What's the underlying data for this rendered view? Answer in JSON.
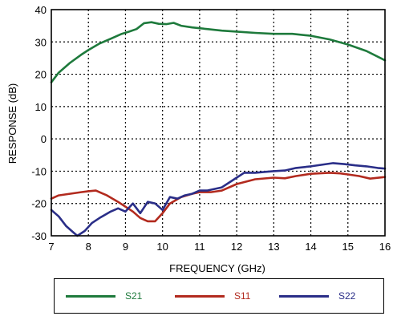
{
  "chart_data": {
    "type": "line",
    "xlabel": "FREQUENCY (GHz)",
    "ylabel": "RESPONSE (dB)",
    "xlim": [
      7,
      16
    ],
    "ylim": [
      -30,
      40
    ],
    "xticks": [
      7,
      8,
      9,
      10,
      11,
      12,
      13,
      14,
      15,
      16
    ],
    "yticks": [
      -30,
      -20,
      -10,
      0,
      10,
      20,
      30,
      40
    ],
    "grid": "dotted",
    "legend_position": "bottom",
    "series": [
      {
        "name": "S21",
        "color": "#1e7a3c",
        "x": [
          7.0,
          7.2,
          7.5,
          7.8,
          8.0,
          8.3,
          8.6,
          8.9,
          9.1,
          9.3,
          9.5,
          9.7,
          9.9,
          10.1,
          10.3,
          10.5,
          10.8,
          11.2,
          11.6,
          12.0,
          12.5,
          13.0,
          13.5,
          14.0,
          14.5,
          15.0,
          15.5,
          16.0
        ],
        "y": [
          17.5,
          20.5,
          23.5,
          26.0,
          27.5,
          29.5,
          31.0,
          32.5,
          33.2,
          34.0,
          35.8,
          36.1,
          35.6,
          35.5,
          35.9,
          35.0,
          34.5,
          34.0,
          33.5,
          33.2,
          32.8,
          32.5,
          32.5,
          31.9,
          30.8,
          29.2,
          27.2,
          24.3
        ]
      },
      {
        "name": "S11",
        "color": "#b22a1e",
        "x": [
          7.0,
          7.2,
          7.5,
          7.8,
          8.0,
          8.2,
          8.5,
          8.8,
          9.0,
          9.2,
          9.4,
          9.6,
          9.8,
          10.0,
          10.2,
          10.5,
          10.8,
          11.0,
          11.3,
          11.6,
          12.0,
          12.5,
          13.0,
          13.3,
          13.6,
          14.0,
          14.5,
          14.8,
          15.0,
          15.3,
          15.6,
          16.0
        ],
        "y": [
          -18.5,
          -17.5,
          -17.0,
          -16.5,
          -16.2,
          -16.0,
          -17.5,
          -19.5,
          -21.0,
          -22.5,
          -24.5,
          -25.5,
          -25.5,
          -23.0,
          -20.0,
          -18.0,
          -17.0,
          -16.5,
          -16.5,
          -16.0,
          -14.0,
          -12.5,
          -12.0,
          -12.2,
          -11.5,
          -10.8,
          -10.5,
          -10.7,
          -11.0,
          -11.5,
          -12.3,
          -11.8
        ]
      },
      {
        "name": "S22",
        "color": "#2a2e88",
        "x": [
          7.0,
          7.2,
          7.4,
          7.6,
          7.7,
          7.9,
          8.1,
          8.3,
          8.6,
          8.8,
          9.0,
          9.2,
          9.4,
          9.6,
          9.8,
          10.0,
          10.2,
          10.4,
          10.6,
          10.8,
          11.0,
          11.2,
          11.4,
          11.6,
          11.8,
          12.0,
          12.2,
          12.5,
          12.8,
          13.0,
          13.3,
          13.6,
          14.0,
          14.3,
          14.6,
          14.9,
          15.2,
          15.5,
          15.8,
          16.0
        ],
        "y": [
          -22.0,
          -24.0,
          -27.0,
          -29.0,
          -30.0,
          -28.5,
          -26.0,
          -24.5,
          -22.5,
          -21.5,
          -22.5,
          -20.0,
          -23.0,
          -19.5,
          -20.0,
          -22.0,
          -18.0,
          -18.5,
          -17.5,
          -17.0,
          -16.0,
          -16.0,
          -15.5,
          -15.0,
          -13.5,
          -12.0,
          -10.5,
          -10.5,
          -10.2,
          -10.0,
          -9.8,
          -9.0,
          -8.5,
          -8.0,
          -7.5,
          -7.8,
          -8.2,
          -8.5,
          -9.0,
          -9.2
        ]
      }
    ]
  }
}
